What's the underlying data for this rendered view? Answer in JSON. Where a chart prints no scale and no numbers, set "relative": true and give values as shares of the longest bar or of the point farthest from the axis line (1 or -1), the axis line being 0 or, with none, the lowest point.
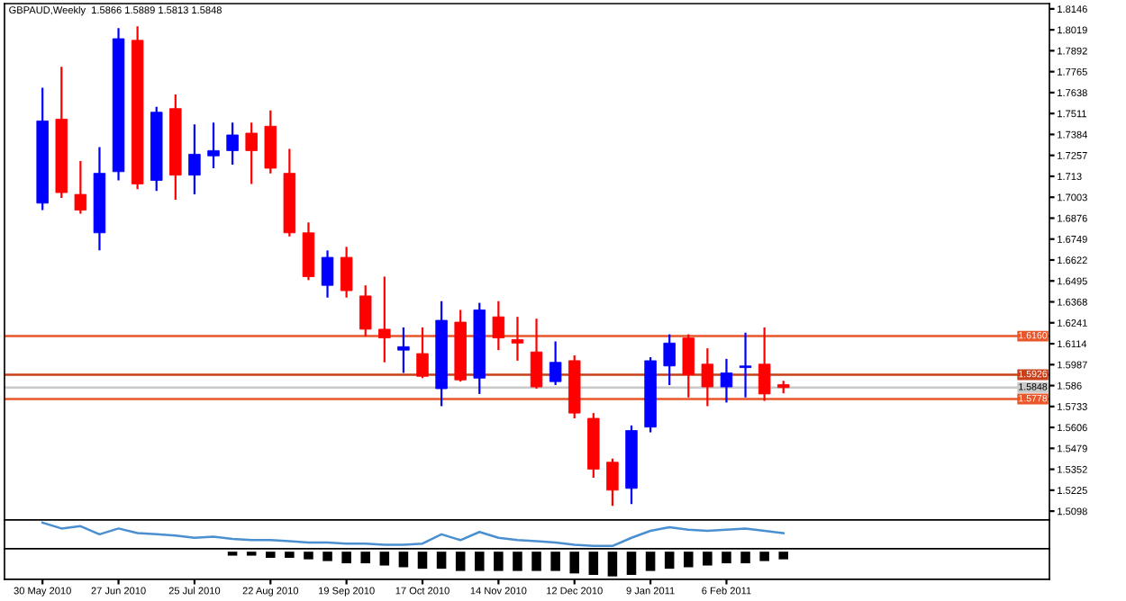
{
  "chart_data": [
    {
      "type": "candlestick",
      "title": "GBPAUD,Weekly  1.5866 1.5889 1.5813 1.5848",
      "x": [
        "2010-05-30",
        "2010-06-06",
        "2010-06-13",
        "2010-06-20",
        "2010-06-27",
        "2010-07-04",
        "2010-07-11",
        "2010-07-18",
        "2010-07-25",
        "2010-08-01",
        "2010-08-08",
        "2010-08-15",
        "2010-08-22",
        "2010-08-29",
        "2010-09-05",
        "2010-09-12",
        "2010-09-19",
        "2010-09-26",
        "2010-10-03",
        "2010-10-10",
        "2010-10-17",
        "2010-10-24",
        "2010-10-31",
        "2010-11-07",
        "2010-11-14",
        "2010-11-21",
        "2010-11-28",
        "2010-12-05",
        "2010-12-12",
        "2010-12-19",
        "2010-12-26",
        "2011-01-02",
        "2011-01-09",
        "2011-01-16",
        "2011-01-23",
        "2011-01-30",
        "2011-02-06",
        "2011-02-13",
        "2011-02-20",
        "2011-02-27"
      ],
      "ohlc": [
        [
          1.6967,
          1.7668,
          1.6925,
          1.7466
        ],
        [
          1.7477,
          1.7795,
          1.6999,
          1.7031
        ],
        [
          1.702,
          1.7222,
          1.6903,
          1.6925
        ],
        [
          1.6787,
          1.7307,
          1.668,
          1.7148
        ],
        [
          1.7158,
          1.8029,
          1.7105,
          1.7965
        ],
        [
          1.7955,
          1.804,
          1.7052,
          1.7084
        ],
        [
          1.7105,
          1.7551,
          1.7041,
          1.7519
        ],
        [
          1.7541,
          1.7626,
          1.6988,
          1.7137
        ],
        [
          1.7137,
          1.7445,
          1.702,
          1.7264
        ],
        [
          1.7254,
          1.7456,
          1.7179,
          1.7286
        ],
        [
          1.7286,
          1.7456,
          1.7201,
          1.7381
        ],
        [
          1.7392,
          1.7456,
          1.7084,
          1.7286
        ],
        [
          1.7434,
          1.753,
          1.7148,
          1.7179
        ],
        [
          1.7148,
          1.7296,
          1.6765,
          1.6787
        ],
        [
          1.6787,
          1.685,
          1.65,
          1.6521
        ],
        [
          1.6468,
          1.668,
          1.6394,
          1.6638
        ],
        [
          1.6638,
          1.6702,
          1.6394,
          1.6436
        ],
        [
          1.6404,
          1.6468,
          1.616,
          1.6202
        ],
        [
          1.6202,
          1.6521,
          1.6001,
          1.6149
        ],
        [
          1.6075,
          1.6213,
          1.5937,
          1.6096
        ],
        [
          1.6054,
          1.6213,
          1.5905,
          1.5916
        ],
        [
          1.5841,
          1.6372,
          1.5735,
          1.6256
        ],
        [
          1.6245,
          1.6319,
          1.5884,
          1.5894
        ],
        [
          1.5905,
          1.6362,
          1.5809,
          1.6319
        ],
        [
          1.6277,
          1.6372,
          1.6075,
          1.6149
        ],
        [
          1.6139,
          1.6277,
          1.6011,
          1.6118
        ],
        [
          1.6064,
          1.6266,
          1.5841,
          1.5852
        ],
        [
          1.5884,
          1.6128,
          1.5863,
          1.6001
        ],
        [
          1.6011,
          1.6043,
          1.5661,
          1.5693
        ],
        [
          1.5661,
          1.5693,
          1.53,
          1.5353
        ],
        [
          1.5395,
          1.5417,
          1.513,
          1.5225
        ],
        [
          1.5236,
          1.5618,
          1.5141,
          1.5587
        ],
        [
          1.5608,
          1.6032,
          1.5576,
          1.6011
        ],
        [
          1.5979,
          1.6171,
          1.5863,
          1.6118
        ],
        [
          1.6149,
          1.6171,
          1.5788,
          1.5926
        ],
        [
          1.599,
          1.6086,
          1.5735,
          1.5852
        ],
        [
          1.5852,
          1.6022,
          1.5757,
          1.5937
        ],
        [
          1.5969,
          1.6181,
          1.5788,
          1.5979
        ],
        [
          1.599,
          1.6213,
          1.5767,
          1.5809
        ],
        [
          1.5866,
          1.5889,
          1.5813,
          1.5848
        ]
      ],
      "colors": [
        "#0000ff",
        "#ff0000",
        "#ff0000",
        "#0000ff",
        "#0000ff",
        "#ff0000",
        "#0000ff",
        "#ff0000",
        "#0000ff",
        "#0000ff",
        "#0000ff",
        "#ff0000",
        "#ff0000",
        "#ff0000",
        "#ff0000",
        "#0000ff",
        "#ff0000",
        "#ff0000",
        "#ff0000",
        "#0000ff",
        "#ff0000",
        "#0000ff",
        "#ff0000",
        "#0000ff",
        "#ff0000",
        "#ff0000",
        "#ff0000",
        "#0000ff",
        "#ff0000",
        "#ff0000",
        "#ff0000",
        "#0000ff",
        "#0000ff",
        "#0000ff",
        "#ff0000",
        "#ff0000",
        "#0000ff",
        "#0000ff",
        "#ff0000",
        "#ff0000"
      ],
      "xlim": [
        "2010-05-16",
        "2011-06-05"
      ],
      "ylim": [
        1.5045,
        1.8178
      ],
      "yticks": [
        1.5098,
        1.5225,
        1.5352,
        1.5479,
        1.5606,
        1.5733,
        1.586,
        1.5987,
        1.6114,
        1.6241,
        1.6368,
        1.6495,
        1.6622,
        1.6749,
        1.6876,
        1.7003,
        1.713,
        1.7257,
        1.7384,
        1.7511,
        1.7638,
        1.7765,
        1.7892,
        1.8019,
        1.8146
      ],
      "ref_lines": [
        {
          "axis": "y",
          "value": 1.616,
          "label": "1.6160",
          "color": "#e8562a"
        },
        {
          "axis": "y",
          "value": 1.5926,
          "label": "1.5926",
          "color": "#c8401a"
        },
        {
          "axis": "y",
          "value": 1.5778,
          "label": "1.5778",
          "color": "#e8562a"
        },
        {
          "axis": "y",
          "value": 1.5848,
          "label": "1.5848",
          "color": "#c8c8c8"
        }
      ],
      "tick_labels": "y"
    },
    {
      "type": "line",
      "relative": true,
      "x": [
        "2010-05-30",
        "2010-06-06",
        "2010-06-13",
        "2010-06-20",
        "2010-06-27",
        "2010-07-04",
        "2010-07-11",
        "2010-07-18",
        "2010-07-25",
        "2010-08-01",
        "2010-08-08",
        "2010-08-15",
        "2010-08-22",
        "2010-08-29",
        "2010-09-05",
        "2010-09-12",
        "2010-09-19",
        "2010-09-26",
        "2010-10-03",
        "2010-10-10",
        "2010-10-17",
        "2010-10-24",
        "2010-10-31",
        "2010-11-07",
        "2010-11-14",
        "2010-11-21",
        "2010-11-28",
        "2010-12-05",
        "2010-12-12",
        "2010-12-19",
        "2010-12-26",
        "2011-01-02",
        "2011-01-09",
        "2011-01-16",
        "2011-01-23",
        "2011-01-30",
        "2011-02-06",
        "2011-02-13",
        "2011-02-20",
        "2011-02-27"
      ],
      "series": [
        {
          "color": "#4a90d0",
          "values": [
            1.0,
            0.75,
            0.85,
            0.5,
            0.75,
            0.55,
            0.5,
            0.45,
            0.35,
            0.4,
            0.3,
            0.25,
            0.25,
            0.2,
            0.15,
            0.15,
            0.1,
            0.1,
            0.05,
            0.05,
            0.1,
            0.5,
            0.25,
            0.6,
            0.35,
            0.25,
            0.2,
            0.15,
            0.05,
            0,
            0,
            0.35,
            0.65,
            0.8,
            0.7,
            0.65,
            0.7,
            0.75,
            0.65,
            0.55
          ]
        }
      ],
      "xlim": [
        "2010-05-16",
        "2011-06-05"
      ],
      "tick_labels": false
    },
    {
      "type": "bar",
      "relative": true,
      "x": [
        "2010-08-08",
        "2010-08-15",
        "2010-08-22",
        "2010-08-29",
        "2010-09-05",
        "2010-09-12",
        "2010-09-19",
        "2010-09-26",
        "2010-10-03",
        "2010-10-10",
        "2010-10-17",
        "2010-10-24",
        "2010-10-31",
        "2010-11-07",
        "2010-11-14",
        "2010-11-21",
        "2010-11-28",
        "2010-12-05",
        "2010-12-12",
        "2010-12-19",
        "2010-12-26",
        "2011-01-02",
        "2011-01-09",
        "2011-01-16",
        "2011-01-23",
        "2011-01-30",
        "2011-02-06",
        "2011-02-13",
        "2011-02-20",
        "2011-02-27"
      ],
      "series": [
        {
          "color": "#000000",
          "values": [
            -0.16,
            -0.16,
            -0.25,
            -0.25,
            -0.31,
            -0.38,
            -0.47,
            -0.47,
            -0.56,
            -0.63,
            -0.69,
            -0.69,
            -0.78,
            -0.78,
            -0.78,
            -0.78,
            -0.78,
            -0.78,
            -0.88,
            -0.94,
            -1,
            -0.94,
            -0.78,
            -0.69,
            -0.63,
            -0.56,
            -0.47,
            -0.47,
            -0.38,
            -0.31
          ]
        }
      ],
      "xlim": [
        "2010-05-16",
        "2011-06-05"
      ],
      "xticks": [
        {
          "value": "2010-05-30",
          "label": "30 May 2010"
        },
        {
          "value": "2010-06-27",
          "label": "27 Jun 2010"
        },
        {
          "value": "2010-07-25",
          "label": "25 Jul 2010"
        },
        {
          "value": "2010-08-22",
          "label": "22 Aug 2010"
        },
        {
          "value": "2010-09-19",
          "label": "19 Sep 2010"
        },
        {
          "value": "2010-10-17",
          "label": "17 Oct 2010"
        },
        {
          "value": "2010-11-14",
          "label": "14 Nov 2010"
        },
        {
          "value": "2010-12-12",
          "label": "12 Dec 2010"
        },
        {
          "value": "2011-01-09",
          "label": "9 Jan 2011"
        },
        {
          "value": "2011-02-06",
          "label": "6 Feb 2011"
        }
      ],
      "tick_labels": "x"
    }
  ]
}
